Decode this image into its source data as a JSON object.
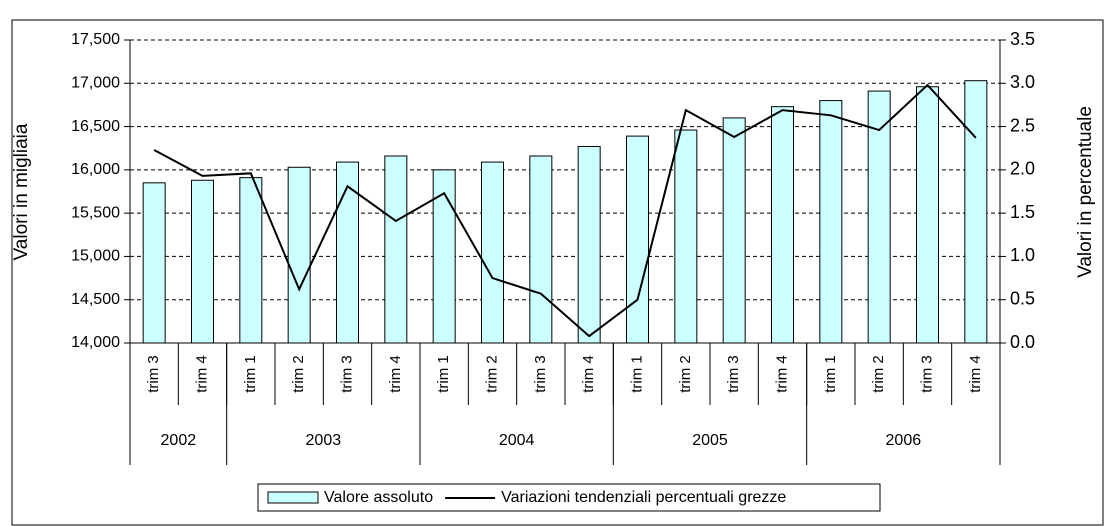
{
  "chart_data": {
    "type": "bar-line",
    "y_label": "Valori in migliaia",
    "y2_label": "Valori in percentuale",
    "groups": [
      {
        "name": "2002",
        "categories": [
          "trim 3",
          "trim 4"
        ]
      },
      {
        "name": "2003",
        "categories": [
          "trim 1",
          "trim 2",
          "trim 3",
          "trim 4"
        ]
      },
      {
        "name": "2004",
        "categories": [
          "trim 1",
          "trim 2",
          "trim 3",
          "trim 4"
        ]
      },
      {
        "name": "2005",
        "categories": [
          "trim 1",
          "trim 2",
          "trim 3",
          "trim 4"
        ]
      },
      {
        "name": "2006",
        "categories": [
          "trim 1",
          "trim 2",
          "trim 3",
          "trim 4"
        ]
      }
    ],
    "series": [
      {
        "name": "Valore assoluto",
        "type": "bar",
        "color": "#ccffff",
        "values": [
          15850,
          15880,
          15910,
          16030,
          16090,
          16160,
          16000,
          16090,
          16160,
          16270,
          16390,
          16460,
          16600,
          16730,
          16800,
          16910,
          16960,
          17030
        ]
      },
      {
        "name": "Variazioni tendenziali percentuali grezze",
        "type": "line",
        "axis": "y2",
        "color": "#000000",
        "values": [
          2.23,
          1.93,
          1.96,
          0.62,
          1.81,
          1.41,
          1.73,
          0.75,
          0.57,
          0.08,
          0.5,
          2.69,
          2.38,
          2.69,
          2.63,
          2.46,
          2.98,
          2.37
        ]
      }
    ],
    "ylim": [
      14000,
      17500
    ],
    "yticks": [
      {
        "value": 14000,
        "label": "14,000"
      },
      {
        "value": 14500,
        "label": "14,500"
      },
      {
        "value": 15000,
        "label": "15,000"
      },
      {
        "value": 15500,
        "label": "15,500"
      },
      {
        "value": 16000,
        "label": "16,000"
      },
      {
        "value": 16500,
        "label": "16,500"
      },
      {
        "value": 17000,
        "label": "17,000"
      },
      {
        "value": 17500,
        "label": "17,500"
      }
    ],
    "y2lim": [
      0,
      3.5
    ],
    "y2ticks": [
      {
        "value": 0,
        "label": "0.0"
      },
      0.5,
      {
        "value": 1,
        "label": "1.0"
      },
      1.5,
      {
        "value": 2,
        "label": "2.0"
      },
      2.5,
      {
        "value": 3,
        "label": "3.0"
      },
      3.5
    ],
    "grid": true,
    "legend": "bottom"
  }
}
